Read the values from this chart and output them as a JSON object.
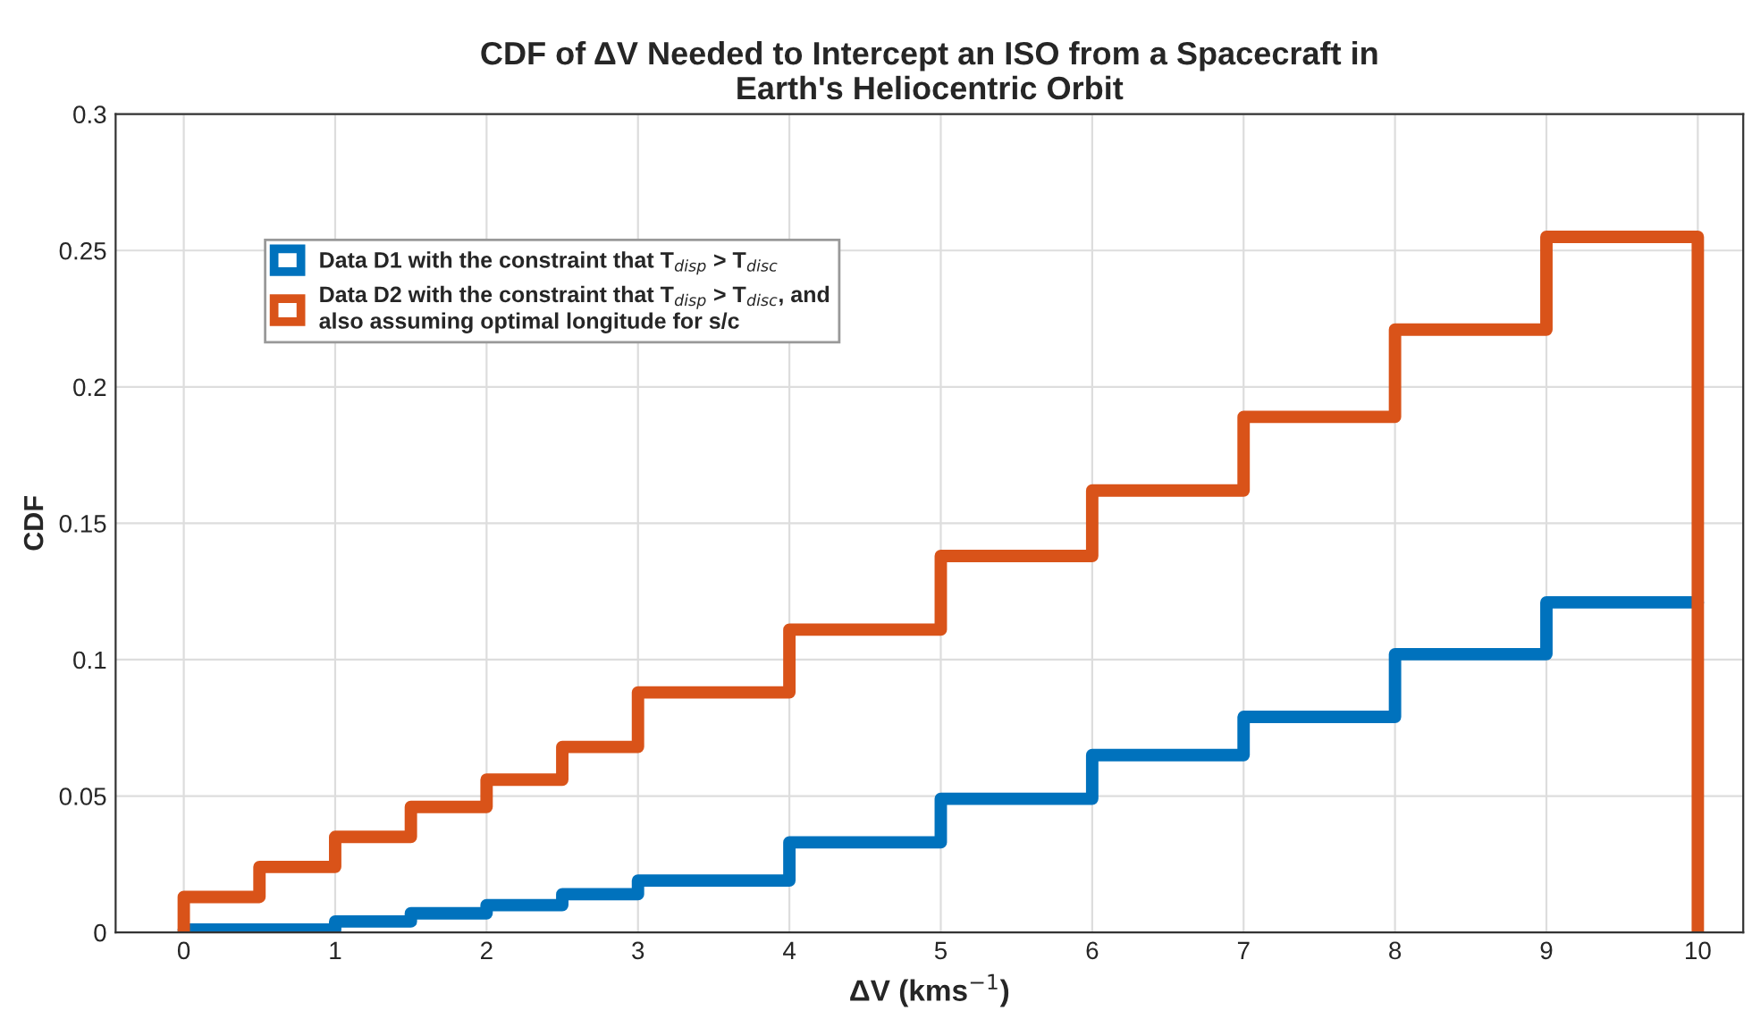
{
  "chart_data": {
    "type": "step",
    "title": "CDF of ΔV Needed to Intercept an ISO from a Spacecraft in\nEarth's Heliocentric Orbit",
    "xlabel": "ΔV (kms$^{−1}$)",
    "ylabel": "CDF",
    "series": [
      {
        "name": "Data D1 with the constraint that T$_{disp}$ > T$_{disc}$",
        "color": "#0072bd",
        "x": [
          0,
          1,
          1.5,
          2,
          2.5,
          3,
          4,
          5,
          6,
          7,
          8,
          9,
          10
        ],
        "values": [
          0.001,
          0.004,
          0.007,
          0.01,
          0.014,
          0.019,
          0.033,
          0.049,
          0.065,
          0.079,
          0.102,
          0.121,
          0.121
        ]
      },
      {
        "name": "Data D2 with the constraint that T$_{disp}$ > T$_{disc}$, and\nalso assuming optimal longitude for s/c",
        "color": "#d95319",
        "x": [
          0,
          0,
          0.5,
          1,
          1.5,
          2,
          2.5,
          3,
          4,
          5,
          6,
          7,
          8,
          9,
          10
        ],
        "values": [
          0,
          0.013,
          0.024,
          0.035,
          0.046,
          0.056,
          0.068,
          0.088,
          0.111,
          0.138,
          0.162,
          0.189,
          0.221,
          0.255,
          0
        ]
      }
    ],
    "xlim": [
      -0.45,
      10.3
    ],
    "xticks": [
      0,
      1,
      2,
      3,
      4,
      5,
      6,
      7,
      8,
      9,
      10
    ],
    "ylim": [
      0,
      0.3
    ],
    "yticks": [
      0,
      0.05,
      0.1,
      0.15,
      0.2,
      0.25,
      0.3
    ],
    "grid": true,
    "legend": "top left"
  }
}
